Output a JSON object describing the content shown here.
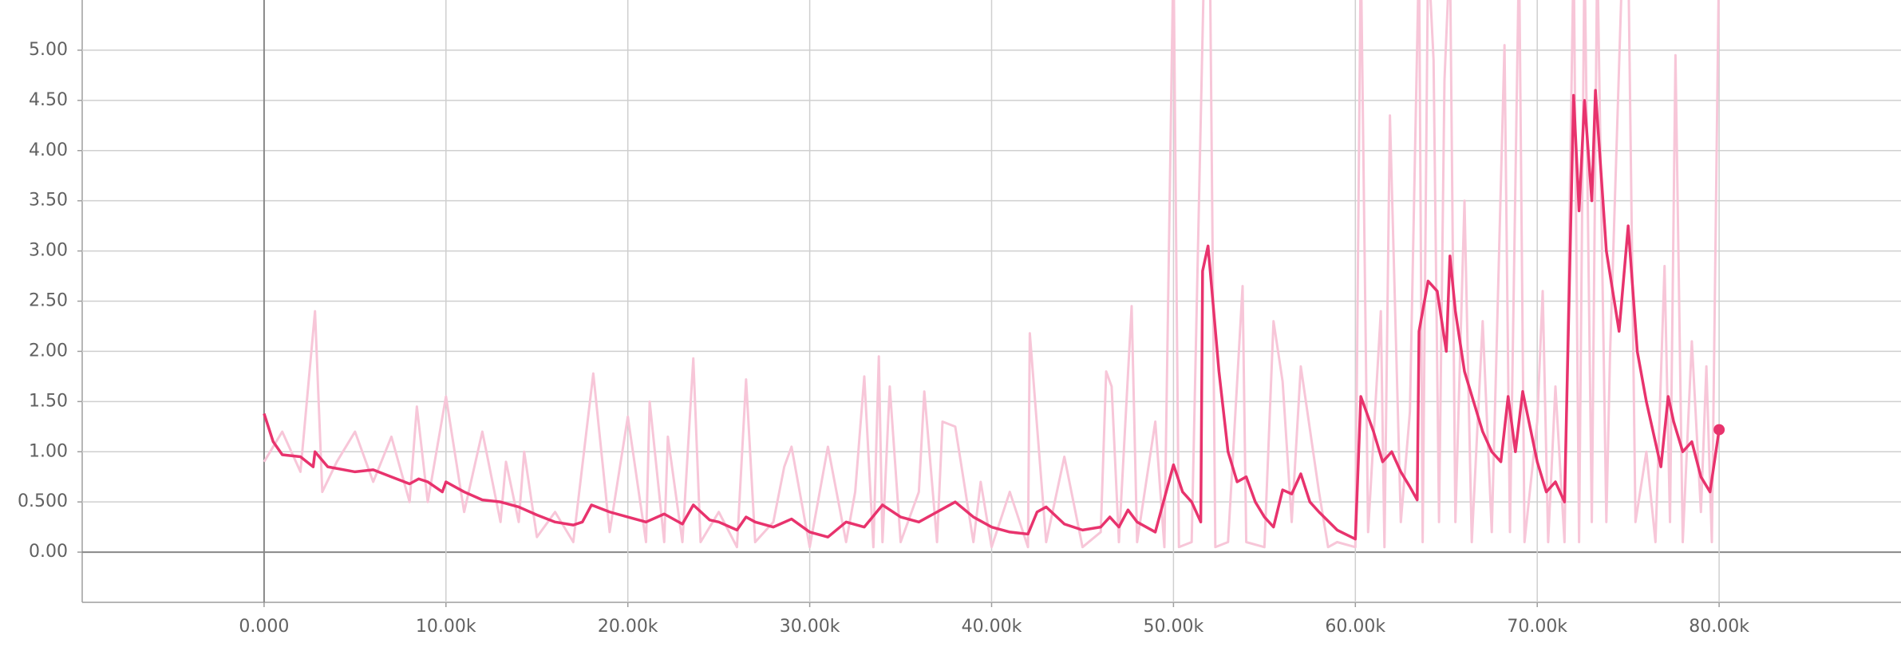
{
  "chart_data": {
    "type": "line",
    "xlim": [
      -10000,
      90000
    ],
    "ylim": [
      -0.5,
      5.5
    ],
    "grid": true,
    "xticks": [
      {
        "value": 0,
        "label": "0.000"
      },
      {
        "value": 10000,
        "label": "10.00k"
      },
      {
        "value": 20000,
        "label": "20.00k"
      },
      {
        "value": 30000,
        "label": "30.00k"
      },
      {
        "value": 40000,
        "label": "40.00k"
      },
      {
        "value": 50000,
        "label": "50.00k"
      },
      {
        "value": 60000,
        "label": "60.00k"
      },
      {
        "value": 70000,
        "label": "70.00k"
      },
      {
        "value": 80000,
        "label": "80.00k"
      }
    ],
    "yticks": [
      {
        "value": 0,
        "label": "0.00"
      },
      {
        "value": 0.5,
        "label": "0.500"
      },
      {
        "value": 1,
        "label": "1.00"
      },
      {
        "value": 1.5,
        "label": "1.50"
      },
      {
        "value": 2,
        "label": "2.00"
      },
      {
        "value": 2.5,
        "label": "2.50"
      },
      {
        "value": 3,
        "label": "3.00"
      },
      {
        "value": 3.5,
        "label": "3.50"
      },
      {
        "value": 4,
        "label": "4.00"
      },
      {
        "value": 4.5,
        "label": "4.50"
      },
      {
        "value": 5,
        "label": "5.00"
      }
    ],
    "series": [
      {
        "color": "#f7c6d8",
        "x": [
          0,
          1000,
          2000,
          2800,
          3200,
          4000,
          5000,
          6000,
          7000,
          8000,
          8400,
          9000,
          10000,
          11000,
          12000,
          13000,
          13300,
          14000,
          14300,
          15000,
          16000,
          17000,
          18100,
          19000,
          20000,
          21000,
          21200,
          22000,
          22200,
          23000,
          23600,
          24000,
          25000,
          26000,
          26500,
          27000,
          28000,
          28600,
          29000,
          30000,
          31000,
          32000,
          32500,
          33000,
          33500,
          33800,
          34000,
          34400,
          35000,
          36000,
          36300,
          37000,
          37300,
          38000,
          39000,
          39400,
          40000,
          41000,
          42000,
          42100,
          42500,
          43000,
          44000,
          45000,
          46000,
          46300,
          46600,
          47000,
          47700,
          48000,
          49000,
          49500,
          50000,
          50300,
          51000,
          51700,
          52000,
          52300,
          53000,
          53800,
          54000,
          55000,
          55500,
          56000,
          56500,
          57000,
          58000,
          58500,
          59000,
          60000,
          60300,
          60700,
          61400,
          61600,
          61900,
          62500,
          63000,
          63500,
          63700,
          64000,
          64300,
          64600,
          64900,
          65200,
          65500,
          66000,
          66400,
          67000,
          67500,
          68200,
          68500,
          69000,
          69300,
          70000,
          70300,
          70600,
          71000,
          71500,
          72000,
          72300,
          72600,
          73000,
          73300,
          73800,
          74000,
          74700,
          75000,
          75400,
          76000,
          76500,
          77000,
          77300,
          77600,
          78000,
          78500,
          79000,
          79300,
          79600,
          80000
        ],
        "values": [
          0.9,
          1.2,
          0.8,
          2.4,
          0.6,
          0.9,
          1.2,
          0.7,
          1.15,
          0.5,
          1.45,
          0.5,
          1.55,
          0.4,
          1.2,
          0.3,
          0.9,
          0.3,
          1.0,
          0.15,
          0.4,
          0.1,
          1.78,
          0.2,
          1.35,
          0.1,
          1.5,
          0.1,
          1.15,
          0.1,
          1.93,
          0.1,
          0.4,
          0.05,
          1.72,
          0.1,
          0.3,
          0.85,
          1.05,
          0.05,
          1.05,
          0.1,
          0.6,
          1.75,
          0.05,
          1.95,
          0.1,
          1.65,
          0.1,
          0.6,
          1.6,
          0.1,
          1.3,
          1.25,
          0.1,
          0.7,
          0.05,
          0.6,
          0.05,
          2.18,
          1.25,
          0.1,
          0.95,
          0.05,
          0.2,
          1.8,
          1.65,
          0.1,
          2.45,
          0.1,
          1.3,
          0.05,
          6,
          0.05,
          0.1,
          6,
          6,
          0.05,
          0.1,
          2.65,
          0.1,
          0.05,
          2.3,
          1.7,
          0.3,
          1.85,
          0.6,
          0.05,
          0.1,
          0.05,
          6,
          0.2,
          2.4,
          0.05,
          4.35,
          0.3,
          1.4,
          6,
          0.1,
          6,
          4.9,
          0.3,
          4.7,
          6,
          0.3,
          3.5,
          0.1,
          2.3,
          0.2,
          5.05,
          0.2,
          6,
          0.1,
          1.3,
          2.6,
          0.1,
          1.65,
          0.1,
          6,
          0.1,
          6,
          0.3,
          6,
          0.3,
          1.95,
          6,
          6,
          0.3,
          1.0,
          0.1,
          2.85,
          0.3,
          4.95,
          0.1,
          2.1,
          0.4,
          1.85,
          0.1,
          6
        ]
      },
      {
        "color": "#e8336d",
        "x": [
          0,
          500,
          1000,
          2000,
          2700,
          2800,
          3500,
          5000,
          6000,
          7000,
          8000,
          8500,
          9000,
          9800,
          10000,
          11000,
          12000,
          13000,
          14000,
          15000,
          16000,
          17000,
          17500,
          18000,
          19000,
          20000,
          21000,
          22000,
          23000,
          23600,
          24500,
          25000,
          26000,
          26500,
          27000,
          28000,
          29000,
          30000,
          31000,
          32000,
          33000,
          34000,
          35000,
          36000,
          37000,
          38000,
          39000,
          40000,
          41000,
          42000,
          42500,
          43000,
          44000,
          45000,
          46000,
          46500,
          47000,
          47500,
          48000,
          49000,
          50000,
          50500,
          51000,
          51500,
          51600,
          51900,
          52500,
          53000,
          53500,
          54000,
          54500,
          55000,
          55500,
          56000,
          56500,
          57000,
          57500,
          58000,
          59000,
          60000,
          60300,
          61000,
          61500,
          62000,
          62500,
          63000,
          63400,
          63500,
          64000,
          64500,
          65000,
          65200,
          65500,
          66000,
          66500,
          67000,
          67500,
          68000,
          68400,
          68800,
          69200,
          70000,
          70500,
          71000,
          71500,
          72000,
          72300,
          72600,
          73000,
          73200,
          73800,
          74500,
          75000,
          75500,
          76000,
          76800,
          77200,
          77500,
          78000,
          78500,
          79000,
          79500,
          80000
        ],
        "values": [
          1.38,
          1.1,
          0.97,
          0.95,
          0.85,
          1.0,
          0.85,
          0.8,
          0.82,
          0.75,
          0.68,
          0.73,
          0.7,
          0.6,
          0.7,
          0.6,
          0.52,
          0.5,
          0.45,
          0.37,
          0.3,
          0.27,
          0.3,
          0.47,
          0.4,
          0.35,
          0.3,
          0.38,
          0.28,
          0.47,
          0.32,
          0.3,
          0.22,
          0.35,
          0.3,
          0.25,
          0.33,
          0.2,
          0.15,
          0.3,
          0.25,
          0.47,
          0.35,
          0.3,
          0.4,
          0.5,
          0.35,
          0.25,
          0.2,
          0.18,
          0.4,
          0.45,
          0.28,
          0.22,
          0.25,
          0.35,
          0.25,
          0.42,
          0.3,
          0.2,
          0.87,
          0.6,
          0.5,
          0.3,
          2.8,
          3.05,
          1.8,
          1.0,
          0.7,
          0.75,
          0.5,
          0.35,
          0.25,
          0.62,
          0.58,
          0.78,
          0.5,
          0.4,
          0.22,
          0.13,
          1.55,
          1.2,
          0.9,
          1.0,
          0.8,
          0.65,
          0.52,
          2.2,
          2.7,
          2.6,
          2.0,
          2.95,
          2.4,
          1.8,
          1.5,
          1.2,
          1.0,
          0.9,
          1.55,
          1.0,
          1.6,
          0.9,
          0.6,
          0.7,
          0.5,
          4.55,
          3.4,
          4.5,
          3.5,
          4.6,
          3.0,
          2.2,
          3.25,
          2.0,
          1.5,
          0.85,
          1.55,
          1.3,
          1.0,
          1.1,
          0.75,
          0.6,
          1.22
        ]
      }
    ]
  }
}
